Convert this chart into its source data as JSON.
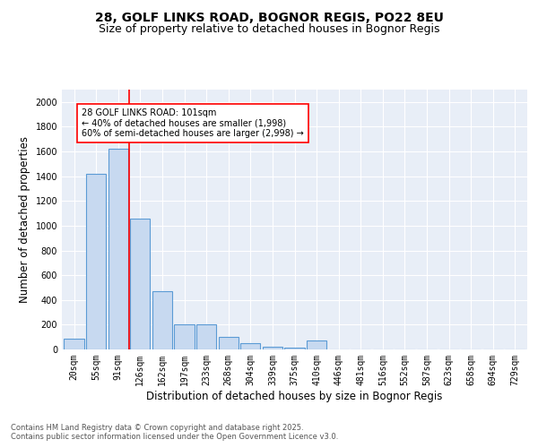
{
  "title_line1": "28, GOLF LINKS ROAD, BOGNOR REGIS, PO22 8EU",
  "title_line2": "Size of property relative to detached houses in Bognor Regis",
  "xlabel": "Distribution of detached houses by size in Bognor Regis",
  "ylabel": "Number of detached properties",
  "categories": [
    "20sqm",
    "55sqm",
    "91sqm",
    "126sqm",
    "162sqm",
    "197sqm",
    "233sqm",
    "268sqm",
    "304sqm",
    "339sqm",
    "375sqm",
    "410sqm",
    "446sqm",
    "481sqm",
    "516sqm",
    "552sqm",
    "587sqm",
    "623sqm",
    "658sqm",
    "694sqm",
    "729sqm"
  ],
  "values": [
    90,
    1420,
    1620,
    1060,
    470,
    205,
    200,
    105,
    50,
    25,
    15,
    70,
    0,
    0,
    0,
    0,
    0,
    0,
    0,
    0,
    0
  ],
  "bar_color": "#c7d9f0",
  "bar_edge_color": "#5b9bd5",
  "vline_x": 2.5,
  "vline_color": "red",
  "annotation_text": "28 GOLF LINKS ROAD: 101sqm\n← 40% of detached houses are smaller (1,998)\n60% of semi-detached houses are larger (2,998) →",
  "annotation_box_color": "white",
  "annotation_box_edge_color": "red",
  "ylim": [
    0,
    2100
  ],
  "yticks": [
    0,
    200,
    400,
    600,
    800,
    1000,
    1200,
    1400,
    1600,
    1800,
    2000
  ],
  "background_color": "#e8eef7",
  "footer_line1": "Contains HM Land Registry data © Crown copyright and database right 2025.",
  "footer_line2": "Contains public sector information licensed under the Open Government Licence v3.0.",
  "title_fontsize": 10,
  "subtitle_fontsize": 9,
  "tick_fontsize": 7,
  "label_fontsize": 8.5
}
